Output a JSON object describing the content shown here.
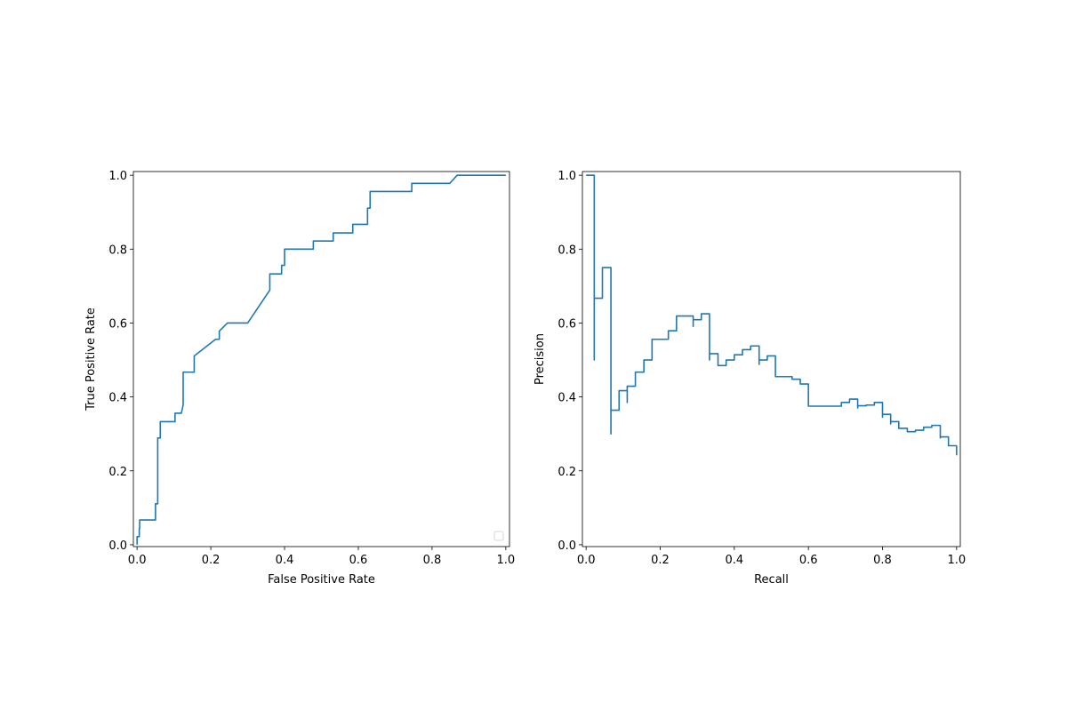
{
  "colors": {
    "line": "#1f77b4",
    "axes": "#000000",
    "background": "#ffffff"
  },
  "chart_data": [
    {
      "id": "roc",
      "type": "line",
      "xlabel": "False Positive Rate",
      "ylabel": "True Positive Rate",
      "xlim": [
        -0.01,
        1.01
      ],
      "ylim": [
        -0.005,
        1.01
      ],
      "xticks": [
        0.0,
        0.2,
        0.4,
        0.6,
        0.8,
        1.0
      ],
      "yticks": [
        0.0,
        0.2,
        0.4,
        0.6,
        0.8,
        1.0
      ],
      "tick_labels": [
        "0.0",
        "0.2",
        "0.4",
        "0.6",
        "0.8",
        "1.0"
      ],
      "legend": {
        "placement": "lower-right",
        "entries": []
      },
      "series": [
        {
          "x": [
            0.0,
            0.0,
            0.006,
            0.006,
            0.007,
            0.007,
            0.05,
            0.05,
            0.056,
            0.056,
            0.063,
            0.063,
            0.103,
            0.103,
            0.12,
            0.125,
            0.125,
            0.155,
            0.155,
            0.213,
            0.223,
            0.223,
            0.245,
            0.3,
            0.36,
            0.36,
            0.392,
            0.392,
            0.4,
            0.4,
            0.478,
            0.478,
            0.532,
            0.532,
            0.585,
            0.585,
            0.625,
            0.625,
            0.632,
            0.632,
            0.745,
            0.745,
            0.848,
            0.868,
            1.0
          ],
          "y": [
            0.0,
            0.022,
            0.022,
            0.044,
            0.044,
            0.067,
            0.067,
            0.111,
            0.111,
            0.289,
            0.289,
            0.333,
            0.333,
            0.356,
            0.356,
            0.378,
            0.467,
            0.467,
            0.511,
            0.556,
            0.556,
            0.578,
            0.6,
            0.6,
            0.689,
            0.733,
            0.733,
            0.756,
            0.756,
            0.8,
            0.8,
            0.822,
            0.822,
            0.844,
            0.844,
            0.867,
            0.867,
            0.911,
            0.911,
            0.956,
            0.956,
            0.978,
            0.978,
            1.0,
            1.0
          ]
        }
      ]
    },
    {
      "id": "pr",
      "type": "line",
      "xlabel": "Recall",
      "ylabel": "Precision",
      "xlim": [
        -0.01,
        1.01
      ],
      "ylim": [
        -0.005,
        1.01
      ],
      "xticks": [
        0.0,
        0.2,
        0.4,
        0.6,
        0.8,
        1.0
      ],
      "yticks": [
        0.0,
        0.2,
        0.4,
        0.6,
        0.8,
        1.0
      ],
      "tick_labels": [
        "0.0",
        "0.2",
        "0.4",
        "0.6",
        "0.8",
        "1.0"
      ],
      "series": [
        {
          "x": [
            0.0,
            0.0,
            0.022,
            0.022,
            0.022,
            0.022,
            0.044,
            0.044,
            0.067,
            0.067,
            0.067,
            0.067,
            0.089,
            0.089,
            0.111,
            0.111,
            0.111,
            0.111,
            0.133,
            0.133,
            0.156,
            0.156,
            0.178,
            0.178,
            0.222,
            0.222,
            0.244,
            0.244,
            0.289,
            0.289,
            0.289,
            0.289,
            0.311,
            0.311,
            0.333,
            0.333,
            0.333,
            0.333,
            0.356,
            0.356,
            0.378,
            0.378,
            0.4,
            0.4,
            0.422,
            0.422,
            0.444,
            0.444,
            0.467,
            0.467,
            0.467,
            0.467,
            0.489,
            0.489,
            0.511,
            0.511,
            0.556,
            0.556,
            0.578,
            0.578,
            0.6,
            0.6,
            0.689,
            0.689,
            0.711,
            0.711,
            0.733,
            0.733,
            0.733,
            0.733,
            0.756,
            0.756,
            0.778,
            0.778,
            0.8,
            0.8,
            0.8,
            0.8,
            0.822,
            0.822,
            0.822,
            0.822,
            0.844,
            0.844,
            0.867,
            0.867,
            0.889,
            0.889,
            0.911,
            0.911,
            0.933,
            0.933,
            0.956,
            0.956,
            0.956,
            0.956,
            0.978,
            0.978,
            1.0,
            1.0
          ],
          "y": [
            1.0,
            1.0,
            1.0,
            0.5,
            0.5,
            0.667,
            0.667,
            0.75,
            0.75,
            0.3,
            0.3,
            0.364,
            0.364,
            0.417,
            0.417,
            0.385,
            0.385,
            0.429,
            0.429,
            0.467,
            0.467,
            0.5,
            0.5,
            0.556,
            0.556,
            0.579,
            0.579,
            0.619,
            0.619,
            0.591,
            0.591,
            0.609,
            0.609,
            0.625,
            0.625,
            0.5,
            0.5,
            0.517,
            0.517,
            0.485,
            0.485,
            0.5,
            0.5,
            0.514,
            0.514,
            0.528,
            0.528,
            0.538,
            0.538,
            0.488,
            0.488,
            0.5,
            0.5,
            0.511,
            0.511,
            0.455,
            0.455,
            0.448,
            0.448,
            0.435,
            0.435,
            0.375,
            0.375,
            0.385,
            0.385,
            0.394,
            0.394,
            0.37,
            0.37,
            0.376,
            0.376,
            0.378,
            0.378,
            0.385,
            0.385,
            0.345,
            0.345,
            0.353,
            0.353,
            0.327,
            0.327,
            0.333,
            0.333,
            0.315,
            0.315,
            0.306,
            0.306,
            0.31,
            0.31,
            0.318,
            0.318,
            0.323,
            0.323,
            0.289,
            0.289,
            0.292,
            0.292,
            0.268,
            0.268,
            0.242
          ]
        }
      ]
    }
  ]
}
